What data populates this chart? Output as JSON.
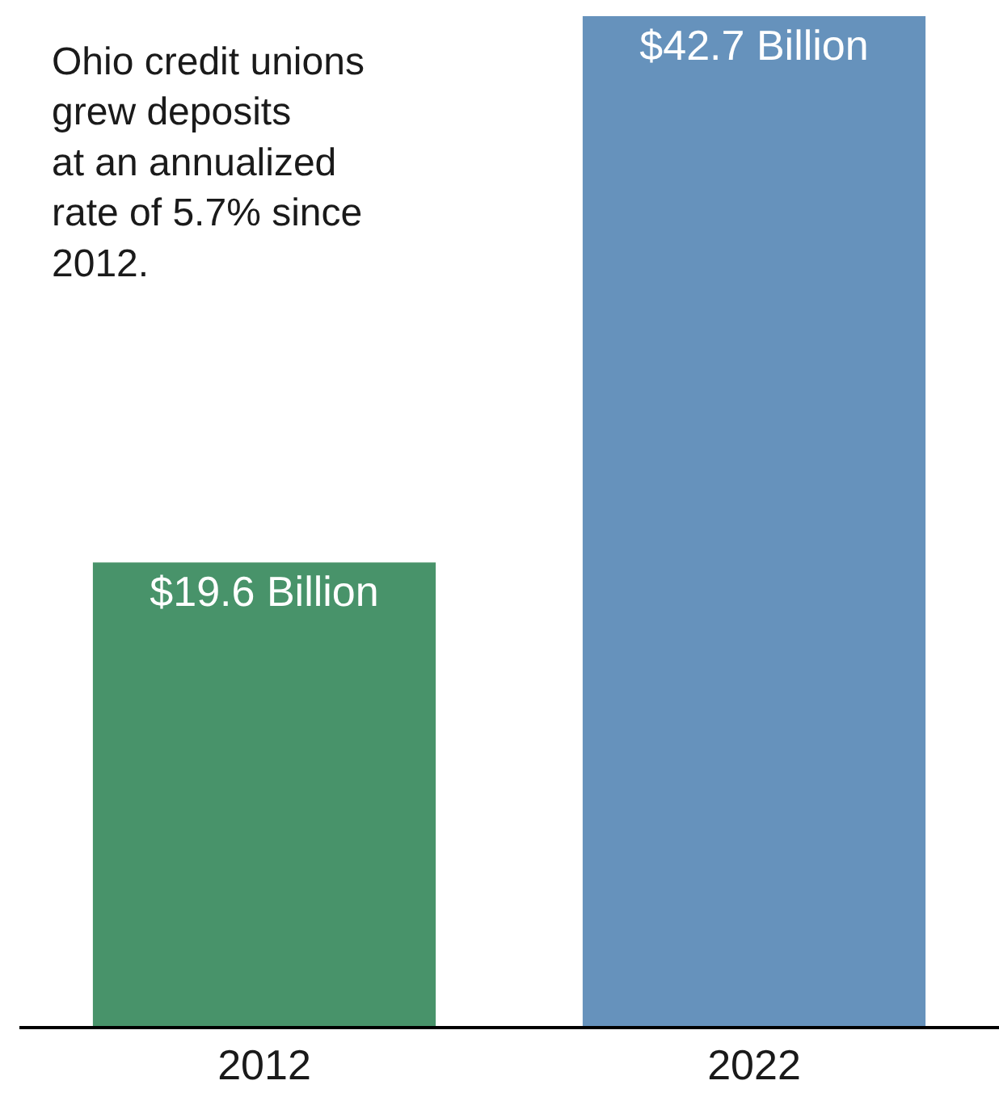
{
  "chart_data": {
    "type": "bar",
    "categories": [
      "2012",
      "2022"
    ],
    "values": [
      19.6,
      42.7
    ],
    "colors": [
      "#48936a",
      "#6692bc"
    ],
    "value_labels": [
      "$19.6 Billion",
      "$42.7 Billion"
    ],
    "annotations": [
      "Ohio credit unions\ngrew deposits\nat an annualized\nrate of 5.7% since\n2012."
    ],
    "tick_labels": "x"
  }
}
